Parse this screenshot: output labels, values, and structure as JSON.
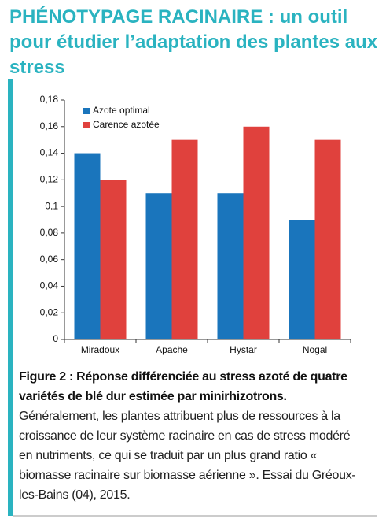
{
  "header": {
    "title_lead": "PHÉNOTYPAGE RACINAIRE :",
    "title_rest": "un outil pour étudier l’adaptation des plantes aux stress"
  },
  "chart_data": {
    "type": "bar",
    "categories": [
      "Miradoux",
      "Apache",
      "Hystar",
      "Nogal"
    ],
    "series": [
      {
        "name": "Azote optimal",
        "color": "#1a75bc",
        "values": [
          0.14,
          0.11,
          0.11,
          0.09
        ]
      },
      {
        "name": "Carence azotée",
        "color": "#e0413d",
        "values": [
          0.12,
          0.15,
          0.16,
          0.15
        ]
      }
    ],
    "ylim": [
      0,
      0.18
    ],
    "yticks": [
      0,
      {
        "value": 0.02,
        "label": "0,02"
      },
      {
        "value": 0.04,
        "label": "0,04"
      },
      {
        "value": 0.06,
        "label": "0,06"
      },
      {
        "value": 0.08,
        "label": "0,08"
      },
      {
        "value": 0.1,
        "label": "0,1"
      },
      {
        "value": 0.12,
        "label": "0,12"
      },
      {
        "value": 0.14,
        "label": "0,14"
      },
      {
        "value": 0.16,
        "label": "0,16"
      },
      {
        "value": 0.18,
        "label": "0,18"
      }
    ],
    "grid": false,
    "legend": "top-left"
  },
  "caption": {
    "label": "Figure 2 :",
    "title": "Réponse différenciée au stress azoté de quatre variétés de blé dur estimée par minirhizotrons.",
    "text": "Généralement, les plantes attribuent plus de ressources à la croissance de leur système racinaire en cas de stress modéré en nutriments, ce qui se traduit par un plus grand ratio « biomasse racinaire sur biomasse aérienne ». Essai du Gréoux-les-Bains (04), 2015."
  }
}
